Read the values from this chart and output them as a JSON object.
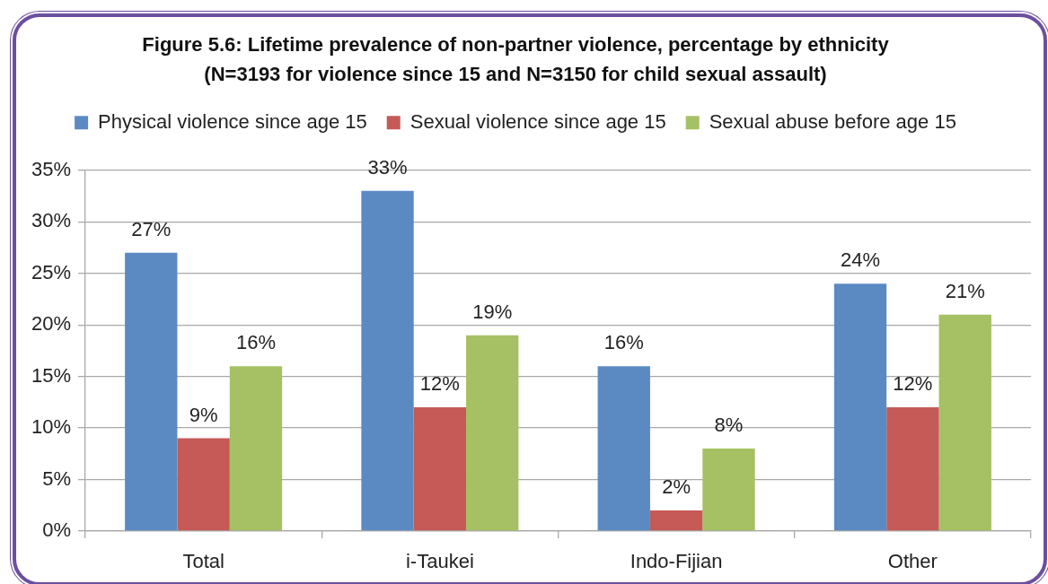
{
  "chart_data": {
    "type": "bar",
    "title": "Figure 5.6: Lifetime prevalence of non-partner violence, percentage by ethnicity",
    "subtitle": "(N=3193 for violence since 15 and N=3150 for child sexual assault)",
    "categories": [
      "Total",
      "i-Taukei",
      "Indo-Fijian",
      "Other"
    ],
    "series": [
      {
        "name": "Physical violence since age 15",
        "color": "#5b8ac3",
        "values": [
          27,
          33,
          16,
          24
        ],
        "value_labels": [
          "27%",
          "33%",
          "16%",
          "24%"
        ]
      },
      {
        "name": "Sexual violence since age 15",
        "color": "#c55a57",
        "values": [
          9,
          12,
          2,
          12
        ],
        "value_labels": [
          "9%",
          "12%",
          "2%",
          "12%"
        ]
      },
      {
        "name": "Sexual abuse before age 15",
        "color": "#a5c163",
        "values": [
          16,
          19,
          8,
          21
        ],
        "value_labels": [
          "16%",
          "19%",
          "8%",
          "21%"
        ]
      }
    ],
    "ylim": [
      0,
      35
    ],
    "yticks": [
      {
        "value": 0,
        "label": "0%"
      },
      {
        "value": 5,
        "label": "5%"
      },
      {
        "value": 10,
        "label": "10%"
      },
      {
        "value": 15,
        "label": "15%"
      },
      {
        "value": 20,
        "label": "20%"
      },
      {
        "value": 25,
        "label": "25%"
      },
      {
        "value": 30,
        "label": "30%"
      },
      {
        "value": 35,
        "label": "35%"
      }
    ],
    "grid": "y",
    "legend": "top"
  }
}
